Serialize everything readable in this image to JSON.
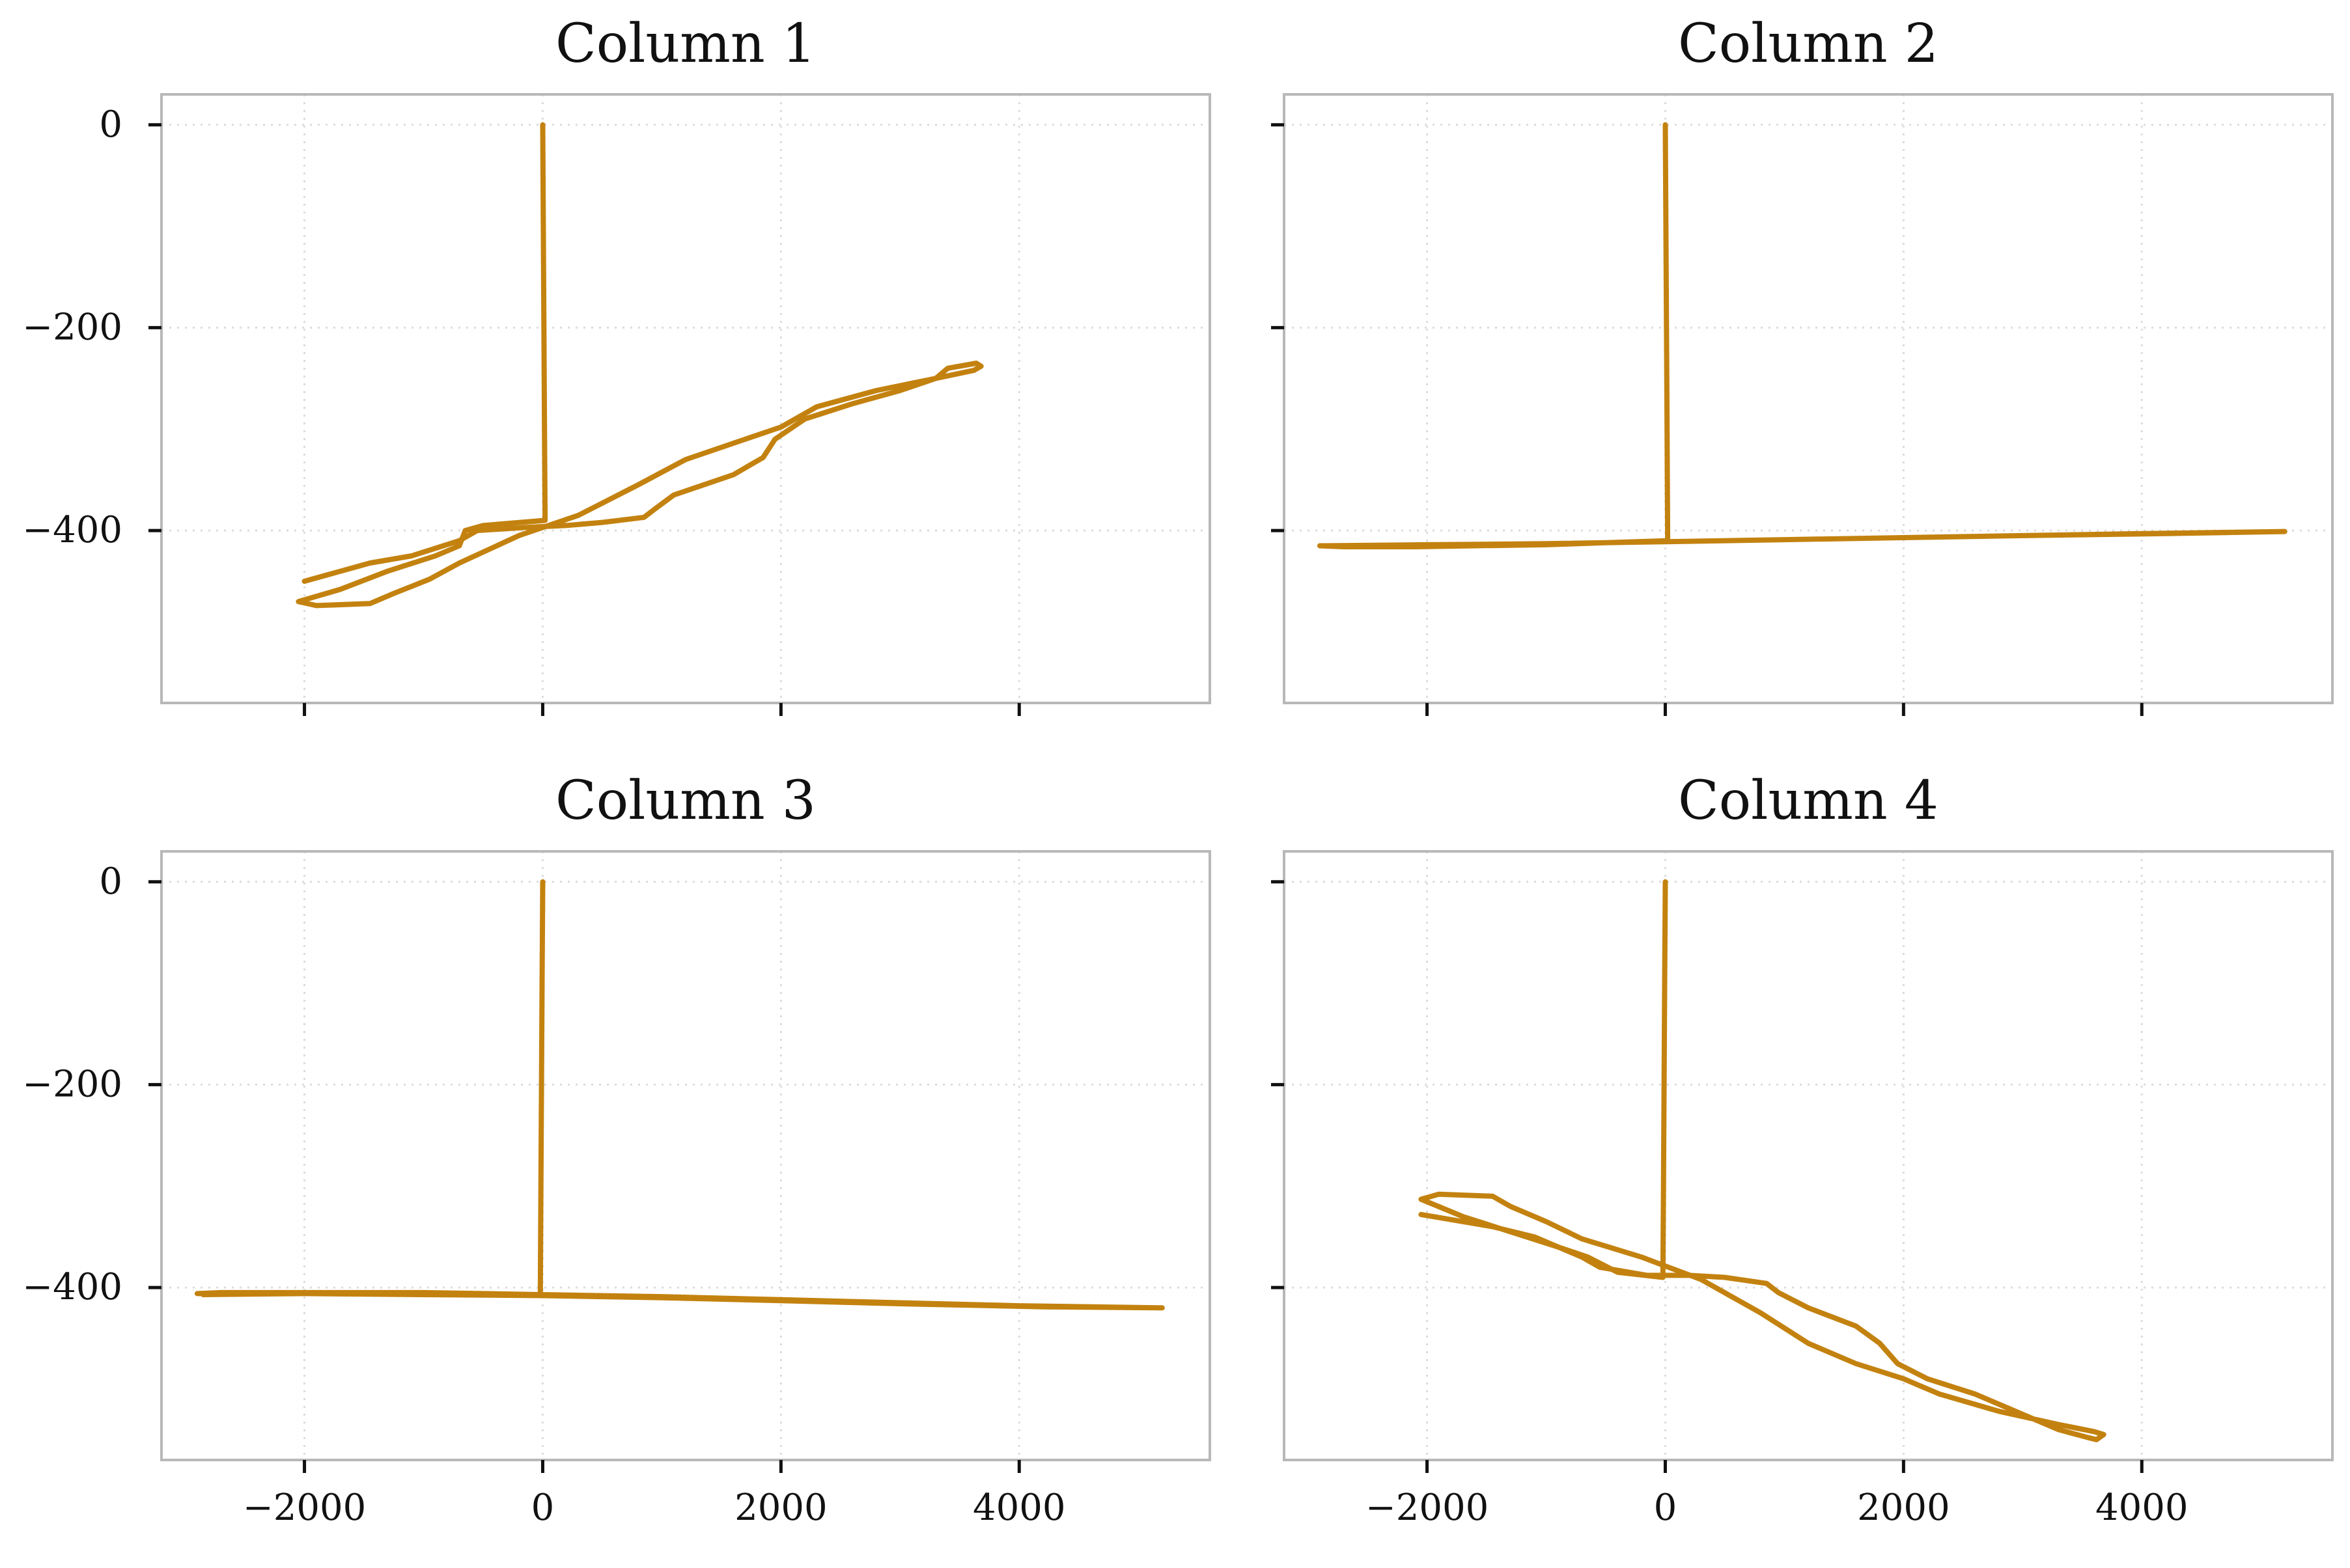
{
  "figure": {
    "line_color": "#c3820f",
    "frame_color": "#b8b8b8",
    "grid_color": "#dcdcdc"
  },
  "chart_data": [
    {
      "type": "line",
      "title": "Column 1",
      "xlabel": "",
      "ylabel": "",
      "xlim": [
        -3200,
        5600
      ],
      "ylim": [
        -570,
        30
      ],
      "xticks": [
        -2000,
        0,
        2000,
        4000
      ],
      "xtick_labels": [
        "−2000",
        "0",
        "2000",
        "4000"
      ],
      "show_xtick_labels": false,
      "yticks": [
        0,
        -200,
        -400
      ],
      "ytick_labels": [
        "0",
        "−200",
        "−400"
      ],
      "show_ytick_labels": true,
      "grid": true,
      "legend": "none",
      "series": [
        {
          "color": "#c3820f",
          "points": [
            [
              0,
              0
            ],
            [
              5,
              -100
            ],
            [
              10,
              -200
            ],
            [
              15,
              -300
            ],
            [
              20,
              -390
            ],
            [
              -500,
              -395
            ],
            [
              -650,
              -400
            ],
            [
              -700,
              -415
            ],
            [
              -900,
              -425
            ],
            [
              -1300,
              -440
            ],
            [
              -1700,
              -458
            ],
            [
              -2050,
              -470
            ],
            [
              -1900,
              -474
            ],
            [
              -1450,
              -472
            ],
            [
              -1250,
              -462
            ],
            [
              -950,
              -448
            ],
            [
              -700,
              -432
            ],
            [
              -200,
              -405
            ],
            [
              300,
              -385
            ],
            [
              800,
              -355
            ],
            [
              1200,
              -330
            ],
            [
              1650,
              -312
            ],
            [
              2000,
              -298
            ],
            [
              2300,
              -278
            ],
            [
              2800,
              -262
            ],
            [
              3300,
              -250
            ],
            [
              3620,
              -242
            ],
            [
              3680,
              -238
            ],
            [
              3640,
              -235
            ],
            [
              3400,
              -240
            ],
            [
              3300,
              -250
            ],
            [
              3000,
              -262
            ],
            [
              2600,
              -275
            ],
            [
              2200,
              -290
            ],
            [
              1950,
              -310
            ],
            [
              1850,
              -328
            ],
            [
              1600,
              -345
            ],
            [
              1100,
              -365
            ],
            [
              950,
              -378
            ],
            [
              850,
              -387
            ],
            [
              500,
              -392
            ],
            [
              200,
              -395
            ],
            [
              -150,
              -397
            ],
            [
              -550,
              -400
            ],
            [
              -700,
              -410
            ],
            [
              -1100,
              -425
            ],
            [
              -1450,
              -432
            ],
            [
              -2000,
              -450
            ]
          ]
        }
      ]
    },
    {
      "type": "line",
      "title": "Column 2",
      "xlabel": "",
      "ylabel": "",
      "xlim": [
        -3200,
        5600
      ],
      "ylim": [
        -570,
        30
      ],
      "xticks": [
        -2000,
        0,
        2000,
        4000
      ],
      "xtick_labels": [
        "−2000",
        "0",
        "2000",
        "4000"
      ],
      "show_xtick_labels": false,
      "yticks": [
        0,
        -200,
        -400
      ],
      "ytick_labels": [
        "0",
        "−200",
        "−400"
      ],
      "show_ytick_labels": false,
      "grid": true,
      "legend": "none",
      "series": [
        {
          "color": "#c3820f",
          "points": [
            [
              0,
              0
            ],
            [
              5,
              -100
            ],
            [
              10,
              -200
            ],
            [
              15,
              -300
            ],
            [
              20,
              -410
            ],
            [
              -500,
              -412
            ],
            [
              -1000,
              -414
            ],
            [
              -1600,
              -415
            ],
            [
              -2100,
              -416
            ],
            [
              -2700,
              -416
            ],
            [
              -2900,
              -415
            ],
            [
              -2000,
              -414
            ],
            [
              -1000,
              -413
            ],
            [
              0,
              -411
            ],
            [
              1000,
              -409
            ],
            [
              2000,
              -407
            ],
            [
              3000,
              -405
            ],
            [
              4000,
              -403
            ],
            [
              5200,
              -401
            ],
            [
              4200,
              -403
            ],
            [
              3000,
              -405
            ],
            [
              2000,
              -407
            ],
            [
              1000,
              -409
            ],
            [
              0,
              -411
            ],
            [
              -1000,
              -413
            ],
            [
              -2000,
              -414
            ],
            [
              -2850,
              -415
            ]
          ]
        }
      ]
    },
    {
      "type": "line",
      "title": "Column 3",
      "xlabel": "",
      "ylabel": "",
      "xlim": [
        -3200,
        5600
      ],
      "ylim": [
        -570,
        30
      ],
      "xticks": [
        -2000,
        0,
        2000,
        4000
      ],
      "xtick_labels": [
        "−2000",
        "0",
        "2000",
        "4000"
      ],
      "show_xtick_labels": true,
      "yticks": [
        0,
        -200,
        -400
      ],
      "ytick_labels": [
        "0",
        "−200",
        "−400"
      ],
      "show_ytick_labels": true,
      "grid": true,
      "legend": "none",
      "series": [
        {
          "color": "#c3820f",
          "points": [
            [
              0,
              0
            ],
            [
              -5,
              -100
            ],
            [
              -10,
              -200
            ],
            [
              -15,
              -300
            ],
            [
              -20,
              -407
            ],
            [
              -500,
              -406
            ],
            [
              -1000,
              -405
            ],
            [
              -1600,
              -405
            ],
            [
              -2100,
              -405
            ],
            [
              -2900,
              -406
            ],
            [
              -2700,
              -405
            ],
            [
              -2000,
              -405
            ],
            [
              -1000,
              -406
            ],
            [
              0,
              -407
            ],
            [
              1000,
              -409
            ],
            [
              2000,
              -412
            ],
            [
              3000,
              -415
            ],
            [
              4000,
              -418
            ],
            [
              5200,
              -420
            ],
            [
              4200,
              -419
            ],
            [
              3000,
              -416
            ],
            [
              2000,
              -413
            ],
            [
              1000,
              -410
            ],
            [
              0,
              -408
            ],
            [
              -1000,
              -407
            ],
            [
              -2000,
              -406
            ],
            [
              -2850,
              -407
            ]
          ]
        }
      ]
    },
    {
      "type": "line",
      "title": "Column 4",
      "xlabel": "",
      "ylabel": "",
      "xlim": [
        -3200,
        5600
      ],
      "ylim": [
        -570,
        30
      ],
      "xticks": [
        -2000,
        0,
        2000,
        4000
      ],
      "xtick_labels": [
        "−2000",
        "0",
        "2000",
        "4000"
      ],
      "show_xtick_labels": true,
      "yticks": [
        0,
        -200,
        -400
      ],
      "ytick_labels": [
        "0",
        "−200",
        "−400"
      ],
      "show_ytick_labels": false,
      "grid": true,
      "legend": "none",
      "series": [
        {
          "color": "#c3820f",
          "points": [
            [
              0,
              0
            ],
            [
              -5,
              -100
            ],
            [
              -10,
              -200
            ],
            [
              -15,
              -300
            ],
            [
              -20,
              -390
            ],
            [
              -400,
              -385
            ],
            [
              -650,
              -370
            ],
            [
              -900,
              -360
            ],
            [
              -1300,
              -345
            ],
            [
              -1700,
              -330
            ],
            [
              -2050,
              -313
            ],
            [
              -1900,
              -308
            ],
            [
              -1450,
              -310
            ],
            [
              -1300,
              -320
            ],
            [
              -1000,
              -335
            ],
            [
              -700,
              -352
            ],
            [
              -200,
              -370
            ],
            [
              300,
              -392
            ],
            [
              800,
              -425
            ],
            [
              1200,
              -455
            ],
            [
              1600,
              -475
            ],
            [
              2000,
              -490
            ],
            [
              2300,
              -505
            ],
            [
              2800,
              -522
            ],
            [
              3300,
              -535
            ],
            [
              3600,
              -542
            ],
            [
              3680,
              -545
            ],
            [
              3620,
              -550
            ],
            [
              3550,
              -548
            ],
            [
              3300,
              -540
            ],
            [
              3000,
              -525
            ],
            [
              2600,
              -505
            ],
            [
              2200,
              -490
            ],
            [
              1950,
              -475
            ],
            [
              1800,
              -455
            ],
            [
              1600,
              -438
            ],
            [
              1200,
              -420
            ],
            [
              950,
              -405
            ],
            [
              850,
              -396
            ],
            [
              500,
              -390
            ],
            [
              200,
              -388
            ],
            [
              -150,
              -388
            ],
            [
              -550,
              -380
            ],
            [
              -700,
              -370
            ],
            [
              -1100,
              -350
            ],
            [
              -1450,
              -340
            ],
            [
              -2050,
              -328
            ]
          ]
        }
      ]
    }
  ]
}
